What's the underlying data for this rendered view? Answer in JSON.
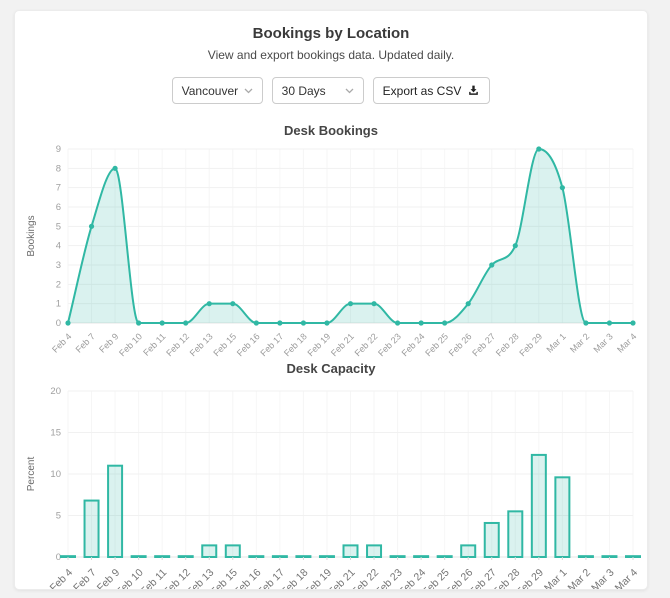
{
  "card": {
    "title": "Bookings by Location",
    "subtitle": "View and export bookings data. Updated daily."
  },
  "controls": {
    "location": {
      "value": "Vancouver",
      "icon": "chevron-down-icon"
    },
    "range": {
      "value": "30 Days",
      "icon": "chevron-down-icon"
    },
    "export": {
      "label": "Export as CSV",
      "icon": "download-icon"
    }
  },
  "colors": {
    "accent": "#30b8a4",
    "accent_fill": "rgba(48,184,164,0.18)",
    "grid": "#f1f1f1",
    "grid_vertical": "#f6f6f6",
    "axis_line": "#e6e6e6",
    "tick_text": "#a0a0a0",
    "axis_label_text": "#6b6b6b"
  },
  "chart_data": [
    {
      "type": "area",
      "title": "Desk Bookings",
      "ylabel": "Bookings",
      "xlabel": "",
      "categories": [
        "Feb 4",
        "Feb 7",
        "Feb 9",
        "Feb 10",
        "Feb 11",
        "Feb 12",
        "Feb 13",
        "Feb 15",
        "Feb 16",
        "Feb 17",
        "Feb 18",
        "Feb 19",
        "Feb 21",
        "Feb 22",
        "Feb 23",
        "Feb 24",
        "Feb 25",
        "Feb 26",
        "Feb 27",
        "Feb 28",
        "Feb 29",
        "Mar 1",
        "Mar 2",
        "Mar 3",
        "Mar 4"
      ],
      "values": [
        0,
        5,
        8,
        0,
        0,
        0,
        1,
        1,
        0,
        0,
        0,
        0,
        1,
        1,
        0,
        0,
        0,
        1,
        3,
        4,
        9,
        7,
        0,
        0,
        0
      ],
      "ylim": [
        0,
        9
      ],
      "yticks": [
        0,
        1,
        2,
        3,
        4,
        5,
        6,
        7,
        8,
        9
      ],
      "grid": true,
      "legend": "none",
      "markers": true
    },
    {
      "type": "bar",
      "title": "Desk Capacity",
      "ylabel": "Percent",
      "xlabel": "",
      "categories": [
        "Feb 4",
        "Feb 7",
        "Feb 9",
        "Feb 10",
        "Feb 11",
        "Feb 12",
        "Feb 13",
        "Feb 15",
        "Feb 16",
        "Feb 17",
        "Feb 18",
        "Feb 19",
        "Feb 21",
        "Feb 22",
        "Feb 23",
        "Feb 24",
        "Feb 25",
        "Feb 26",
        "Feb 27",
        "Feb 28",
        "Feb 29",
        "Mar 1",
        "Mar 2",
        "Mar 3",
        "Mar 4"
      ],
      "values": [
        0.1,
        6.8,
        11.0,
        0.1,
        0.1,
        0.1,
        1.4,
        1.4,
        0.1,
        0.1,
        0.1,
        0.1,
        1.4,
        1.4,
        0.1,
        0.1,
        0.1,
        1.4,
        4.1,
        5.5,
        12.3,
        9.6,
        0.1,
        0.1,
        0.1
      ],
      "ylim": [
        0,
        20
      ],
      "yticks": [
        0,
        5,
        10,
        15,
        20
      ],
      "grid": true,
      "legend": "none"
    }
  ]
}
